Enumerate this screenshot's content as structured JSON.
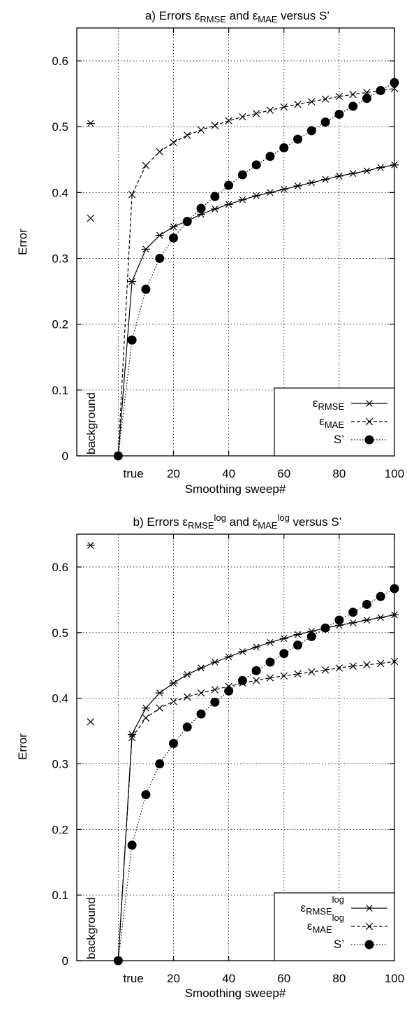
{
  "chart_data": [
    {
      "type": "line",
      "title": {
        "pre": "a) Errors ε",
        "sub1": "RMSE",
        "mid": " and ε",
        "sub2": "MAE",
        "post": " versus S’"
      },
      "xlabel": "Smoothing sweep#",
      "ylabel": "Error",
      "xlim": [
        -15,
        100
      ],
      "ylim": [
        0,
        0.65
      ],
      "x_ticks": [
        20,
        40,
        60,
        80,
        100
      ],
      "y_ticks": [
        0,
        0.1,
        0.2,
        0.3,
        0.4,
        0.5,
        0.6
      ],
      "special_ticks": {
        "background": "background",
        "true": "true"
      },
      "grid": true,
      "legend_position": "bottom-right",
      "background_points": [
        {
          "series": "RMSE",
          "value": 0.505
        },
        {
          "series": "MAE",
          "value": 0.361
        }
      ],
      "series": [
        {
          "key": "RMSE",
          "legend_main": "ε",
          "legend_sub": "RMSE",
          "legend_sup": "",
          "marker": "asterisk",
          "line": "solid",
          "x": [
            0,
            5,
            10,
            15,
            20,
            25,
            30,
            35,
            40,
            45,
            50,
            55,
            60,
            65,
            70,
            75,
            80,
            85,
            90,
            95,
            100
          ],
          "y": [
            0,
            0.265,
            0.314,
            0.335,
            0.348,
            0.357,
            0.367,
            0.375,
            0.382,
            0.389,
            0.395,
            0.4,
            0.405,
            0.41,
            0.415,
            0.42,
            0.425,
            0.429,
            0.433,
            0.438,
            0.442
          ]
        },
        {
          "key": "MAE",
          "legend_main": "ε",
          "legend_sub": "MAE",
          "legend_sup": "",
          "marker": "x",
          "line": "dashed",
          "x": [
            0,
            5,
            10,
            15,
            20,
            25,
            30,
            35,
            40,
            45,
            50,
            55,
            60,
            65,
            70,
            75,
            80,
            85,
            90,
            95,
            100
          ],
          "y": [
            0,
            0.397,
            0.441,
            0.462,
            0.476,
            0.487,
            0.495,
            0.502,
            0.509,
            0.515,
            0.52,
            0.525,
            0.53,
            0.534,
            0.538,
            0.542,
            0.546,
            0.549,
            0.552,
            0.555,
            0.558
          ]
        },
        {
          "key": "S",
          "legend_main": "S’",
          "legend_sub": "",
          "legend_sup": "",
          "marker": "dot",
          "line": "dotted",
          "x": [
            0,
            5,
            10,
            15,
            20,
            25,
            30,
            35,
            40,
            45,
            50,
            55,
            60,
            65,
            70,
            75,
            80,
            85,
            90,
            95,
            100
          ],
          "y": [
            0,
            0.176,
            0.253,
            0.3,
            0.331,
            0.356,
            0.376,
            0.394,
            0.411,
            0.427,
            0.442,
            0.455,
            0.468,
            0.481,
            0.494,
            0.507,
            0.519,
            0.531,
            0.543,
            0.555,
            0.567
          ]
        }
      ]
    },
    {
      "type": "line",
      "title": {
        "pre": "b) Errors ε",
        "sub1": "RMSE",
        "sup1": "log",
        "mid": " and ε",
        "sub2": "MAE",
        "sup2": "log",
        "post": " versus S’"
      },
      "xlabel": "Smoothing sweep#",
      "ylabel": "Error",
      "xlim": [
        -15,
        100
      ],
      "ylim": [
        0,
        0.65
      ],
      "x_ticks": [
        20,
        40,
        60,
        80,
        100
      ],
      "y_ticks": [
        0,
        0.1,
        0.2,
        0.3,
        0.4,
        0.5,
        0.6
      ],
      "special_ticks": {
        "background": "background",
        "true": "true"
      },
      "grid": true,
      "legend_position": "bottom-right",
      "background_points": [
        {
          "series": "RMSE",
          "value": 0.633
        },
        {
          "series": "MAE",
          "value": 0.364
        }
      ],
      "series": [
        {
          "key": "RMSE",
          "legend_main": "ε",
          "legend_sub": "RMSE",
          "legend_sup": "log",
          "marker": "asterisk",
          "line": "solid",
          "x": [
            0,
            5,
            10,
            15,
            20,
            25,
            30,
            35,
            40,
            45,
            50,
            55,
            60,
            65,
            70,
            75,
            80,
            85,
            90,
            95,
            100
          ],
          "y": [
            0,
            0.345,
            0.385,
            0.408,
            0.423,
            0.436,
            0.446,
            0.455,
            0.463,
            0.471,
            0.478,
            0.485,
            0.491,
            0.497,
            0.502,
            0.507,
            0.511,
            0.515,
            0.519,
            0.523,
            0.527
          ]
        },
        {
          "key": "MAE",
          "legend_main": "ε",
          "legend_sub": "MAE",
          "legend_sup": "log",
          "marker": "x",
          "line": "dashed",
          "x": [
            0,
            5,
            10,
            15,
            20,
            25,
            30,
            35,
            40,
            45,
            50,
            55,
            60,
            65,
            70,
            75,
            80,
            85,
            90,
            95,
            100
          ],
          "y": [
            0,
            0.34,
            0.37,
            0.385,
            0.395,
            0.402,
            0.408,
            0.413,
            0.418,
            0.423,
            0.427,
            0.431,
            0.434,
            0.437,
            0.44,
            0.443,
            0.446,
            0.449,
            0.451,
            0.453,
            0.456
          ]
        },
        {
          "key": "S",
          "legend_main": "S’",
          "legend_sub": "",
          "legend_sup": "",
          "marker": "dot",
          "line": "dotted",
          "x": [
            0,
            5,
            10,
            15,
            20,
            25,
            30,
            35,
            40,
            45,
            50,
            55,
            60,
            65,
            70,
            75,
            80,
            85,
            90,
            95,
            100
          ],
          "y": [
            0,
            0.176,
            0.253,
            0.3,
            0.331,
            0.356,
            0.376,
            0.394,
            0.411,
            0.427,
            0.442,
            0.455,
            0.468,
            0.481,
            0.494,
            0.507,
            0.519,
            0.531,
            0.543,
            0.555,
            0.567
          ]
        }
      ]
    }
  ]
}
